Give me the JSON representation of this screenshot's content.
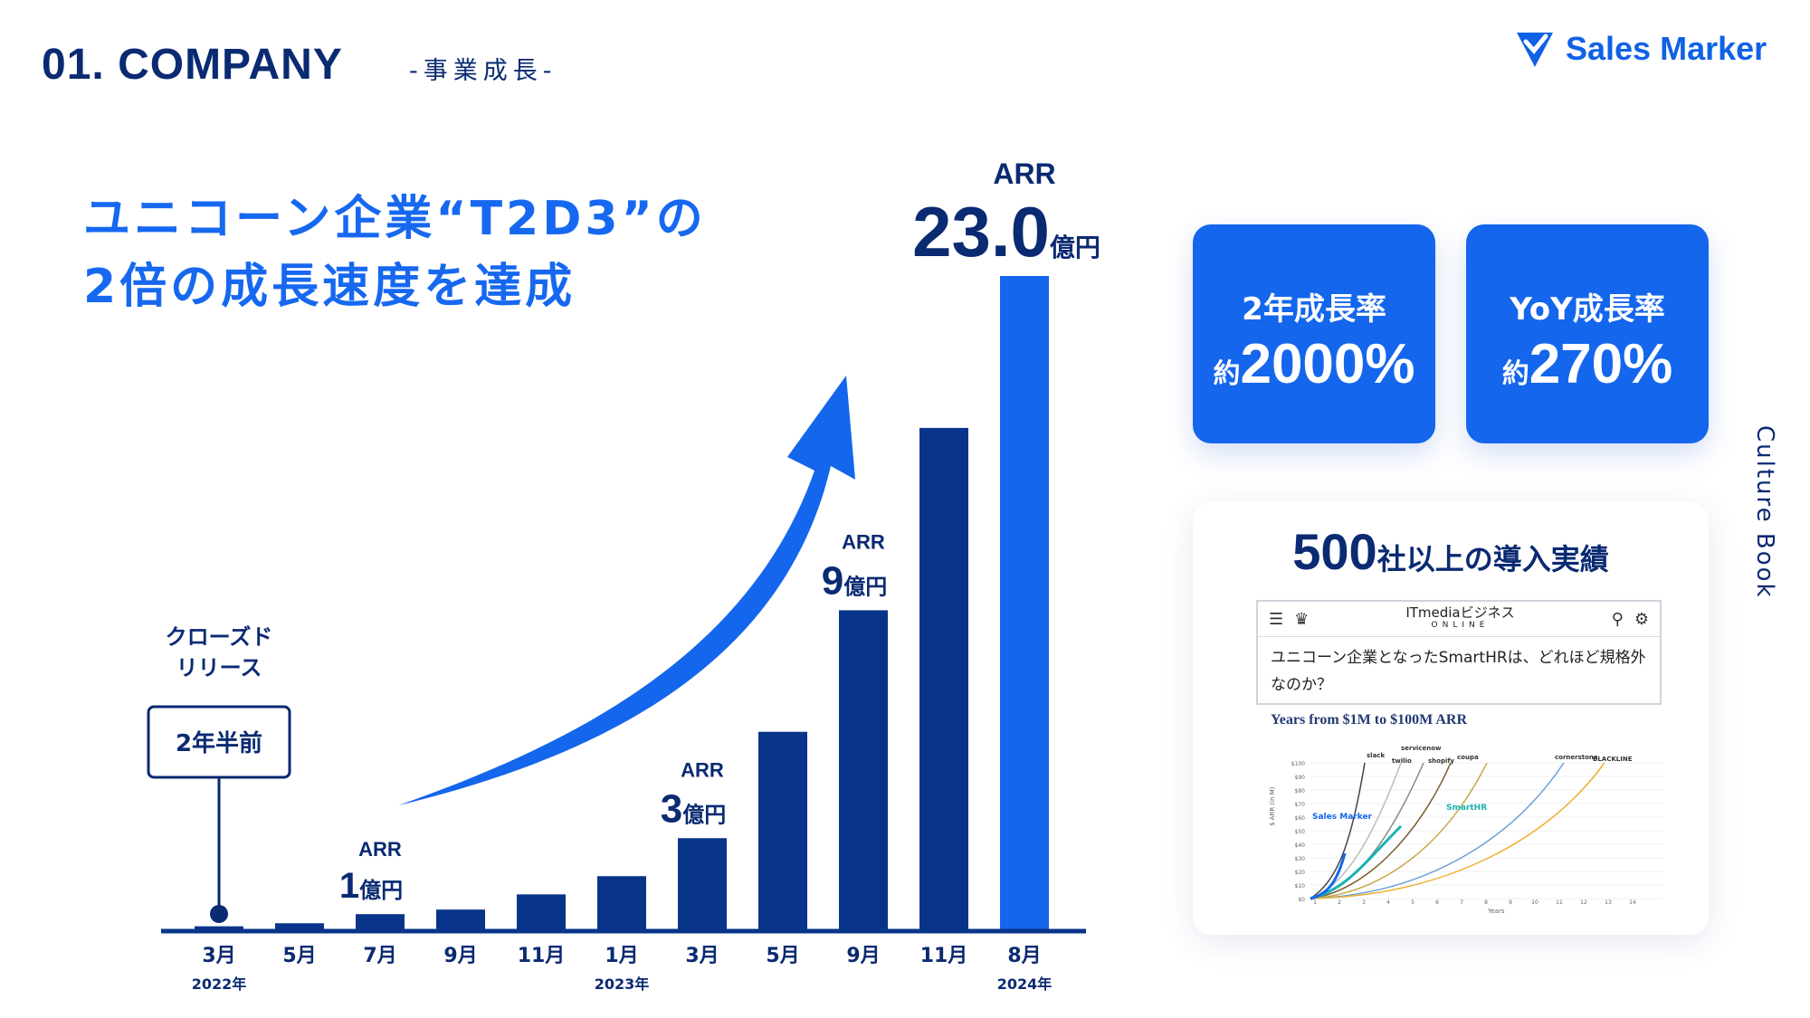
{
  "header": {
    "title": "01. COMPANY",
    "subtitle": "-事業成長-"
  },
  "logo": {
    "text": "Sales Marker"
  },
  "headline": {
    "line1": "ユニコーン企業“T2D3”の",
    "line2": "2倍の成長速度を達成"
  },
  "colors": {
    "dark_bar": "#08358a",
    "highlight_bar": "#1466ec",
    "accent": "#1768f0",
    "navy": "#0a2a72"
  },
  "chart_data": {
    "type": "bar",
    "categories": [
      "3月",
      "5月",
      "7月",
      "9月",
      "11月",
      "1月",
      "3月",
      "5月",
      "9月",
      "11月",
      "8月"
    ],
    "values": [
      0.2,
      0.4,
      1.0,
      1.3,
      2.3,
      3.5,
      6.0,
      13.0,
      21.0,
      33.0,
      43.0
    ],
    "highlight_index": 10,
    "year_labels": [
      {
        "label": "2022年",
        "category_index": 0
      },
      {
        "label": "2023年",
        "category_index": 5
      },
      {
        "label": "2024年",
        "category_index": 10
      }
    ],
    "value_callouts": [
      {
        "category_index": 2,
        "prefix": "ARR",
        "value": "1",
        "unit": "億円"
      },
      {
        "category_index": 6,
        "prefix": "ARR",
        "value": "3",
        "unit": "億円"
      },
      {
        "category_index": 8,
        "prefix": "ARR",
        "value": "9",
        "unit": "億円"
      },
      {
        "category_index": 10,
        "prefix": "ARR",
        "value": "23.0",
        "unit": "億円"
      }
    ],
    "milestone": {
      "category_index": 0,
      "label_line1": "クローズド",
      "label_line2": "リリース",
      "box_text": "2年半前"
    }
  },
  "stats": [
    {
      "label": "2年成長率",
      "prefix": "約",
      "value": "2000%"
    },
    {
      "label": "YoY成長率",
      "prefix": "約",
      "value": "270%"
    }
  ],
  "clients": {
    "count": "500",
    "title_rest": "社以上の導入実績",
    "article": {
      "site": "ITmediaビジネス",
      "site_sub": "ONLINE",
      "text": "ユニコーン企業となったSmartHRは、どれほど規格外なのか？"
    },
    "mini_chart": {
      "title": "Years from $1M to $100M ARR",
      "y_ticks": [
        "$100",
        "$90",
        "$80",
        "$70",
        "$60",
        "$50",
        "$40",
        "$30",
        "$20",
        "$10",
        "$0"
      ],
      "x_ticks": [
        "1",
        "2",
        "3",
        "4",
        "5",
        "6",
        "7",
        "8",
        "9",
        "10",
        "11",
        "12",
        "13",
        "14"
      ],
      "x_label": "Years",
      "y_label": "$ ARR (in M)",
      "companies": [
        "slack",
        "servicenow",
        "twilio",
        "shopify",
        "coupa",
        "cornerstone",
        "BLACKLINE",
        "SmartHR",
        "Sales Marker"
      ]
    }
  },
  "side_label": "Culture Book"
}
